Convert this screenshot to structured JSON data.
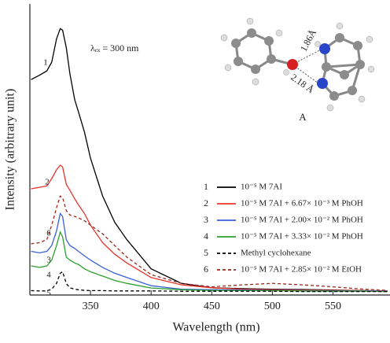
{
  "chart_data": {
    "type": "line",
    "x_label": "Wavelength (nm)",
    "y_label": "Intensity (arbitrary unit)",
    "annotation": "λₑₓ = 300 nm",
    "inset": {
      "label": "A",
      "distances": [
        "1.86Å",
        "2.18 Å"
      ]
    },
    "xlim": [
      300,
      597
    ],
    "ylim": [
      0,
      100
    ],
    "xticks": [
      350,
      400,
      450,
      500,
      550
    ],
    "x": [
      301,
      308,
      314,
      318,
      322,
      325,
      327,
      330,
      333,
      337,
      340,
      345,
      350,
      360,
      370,
      380,
      400,
      425,
      450,
      475,
      500,
      525,
      550,
      575,
      595
    ],
    "series": [
      {
        "label": "1",
        "name": "10⁻⁵ M 7AI",
        "color": "#000000",
        "dash": false,
        "values": [
          74,
          75.5,
          77,
          80,
          88,
          91.5,
          91,
          85,
          76,
          67,
          63,
          56,
          47,
          34,
          25,
          19,
          9,
          4,
          2.5,
          2.2,
          2,
          1.9,
          1.7,
          1.5,
          1.4
        ]
      },
      {
        "label": "2",
        "name": "10⁻⁵ M 7AI + 6.67× 10⁻³ M PhOH",
        "color": "#e8332a",
        "dash": false,
        "values": [
          36.5,
          37,
          37.5,
          40,
          43,
          44.6,
          44,
          38,
          36,
          33,
          31,
          28,
          24,
          18,
          14,
          11,
          6,
          3.5,
          2.5,
          2,
          1.8,
          1.7,
          1.6,
          1.5,
          1.4
        ]
      },
      {
        "label": "3",
        "name": "10⁻⁵ M 7AI + 2.00× 10⁻² M PhOH",
        "color": "#3a5fd9",
        "dash": false,
        "values": [
          15,
          14.5,
          15,
          17,
          22,
          28,
          27,
          19,
          17,
          16,
          15,
          13.5,
          12,
          9.5,
          7.5,
          6,
          3.2,
          2,
          1.8,
          1.7,
          1.6,
          1.5,
          1.4,
          1.4,
          1.3
        ]
      },
      {
        "label": "4",
        "name": "10⁻⁵ M 7AI + 3.33× 10⁻² M PhOH",
        "color": "#2ca02c",
        "dash": false,
        "values": [
          10,
          9.5,
          10,
          12,
          17,
          21.6,
          20,
          13,
          12,
          11,
          10.5,
          9,
          8,
          6.5,
          5,
          4,
          2.4,
          1.8,
          1.6,
          1.5,
          1.5,
          1.4,
          1.3,
          1.3,
          1.2
        ]
      },
      {
        "label": "5",
        "name": "Methyl cyclohexane",
        "color": "#000000",
        "dash": true,
        "values": [
          1.5,
          1.4,
          1.4,
          2,
          4,
          7.5,
          8,
          4,
          2.5,
          2,
          1.8,
          1.6,
          1.5,
          1.5,
          1.4,
          1.4,
          1.4,
          1.3,
          1.3,
          1.3,
          1.3,
          1.2,
          1.2,
          1.2,
          1.2
        ]
      },
      {
        "label": "6",
        "name": "10⁻⁵ M 7AI + 2.85× 10⁻² M EtOH",
        "color": "#9b2a1e",
        "dash": true,
        "values": [
          17.6,
          18,
          19,
          24,
          30,
          34,
          33.5,
          29,
          27.5,
          27,
          26.5,
          25.5,
          24,
          21,
          17,
          13,
          7,
          4,
          2.8,
          3.5,
          4,
          3.5,
          2.8,
          2,
          1.6
        ]
      }
    ]
  }
}
